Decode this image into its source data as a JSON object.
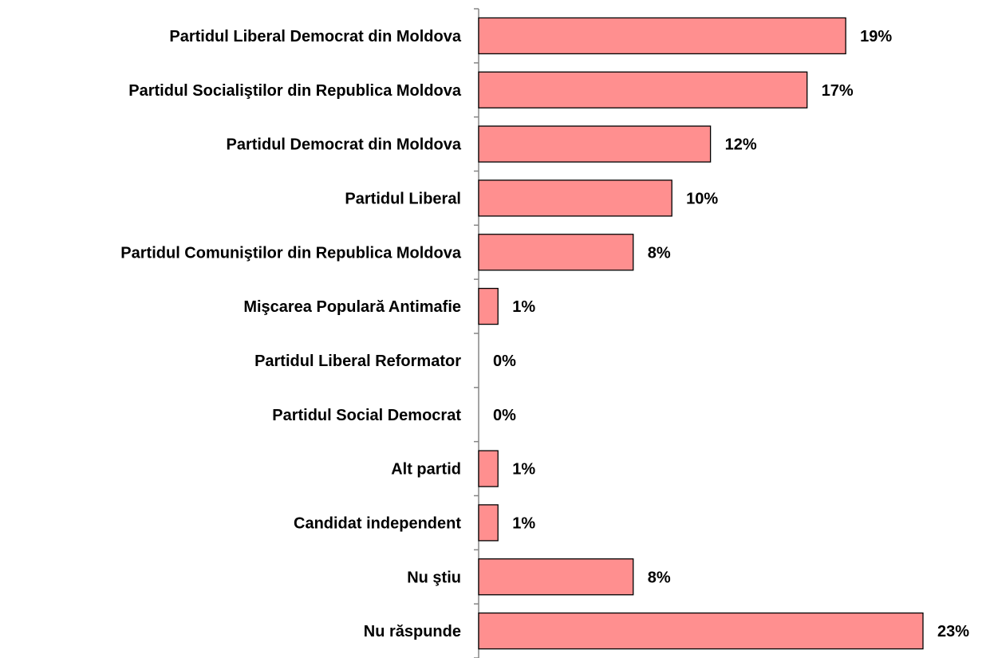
{
  "chart_data": {
    "type": "bar",
    "orientation": "horizontal",
    "categories": [
      "Partidul Liberal Democrat din Moldova",
      "Partidul Socialiştilor din Republica Moldova",
      "Partidul Democrat din Moldova",
      "Partidul Liberal",
      "Partidul Comuniştilor din Republica Moldova",
      "Mişcarea Populară Antimafie",
      "Partidul Liberal Reformator",
      "Partidul Social Democrat",
      "Alt partid",
      "Candidat independent",
      "Nu ştiu",
      "Nu răspunde"
    ],
    "values": [
      19,
      17,
      12,
      10,
      8,
      1,
      0,
      0,
      1,
      1,
      8,
      23
    ],
    "value_labels": [
      "19%",
      "17%",
      "12%",
      "10%",
      "8%",
      "1%",
      "0%",
      "0%",
      "1%",
      "1%",
      "8%",
      "23%"
    ],
    "unit": "%",
    "xlim": [
      0,
      23
    ],
    "grid": false,
    "legend": "none",
    "bar_color": "#ff8f8f",
    "bar_stroke": "#000000",
    "axis_color": "#868686"
  }
}
